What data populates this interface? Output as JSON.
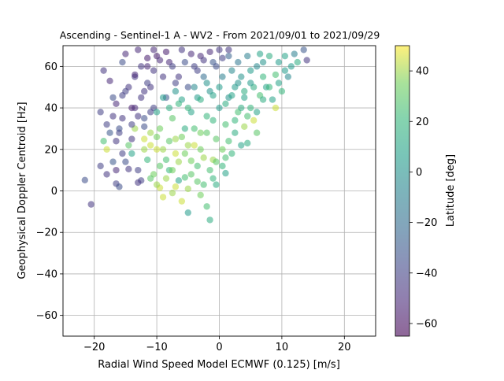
{
  "chart_data": {
    "type": "scatter",
    "title": "Ascending - Sentinel-1 A - WV2 - From 2021/09/01 to 2021/09/29",
    "xlabel": "Radial Wind Speed Model ECMWF (0.125) [m/s]",
    "ylabel": "Geophysical Doppler Centroid [Hz]",
    "xlim": [
      -25,
      25
    ],
    "ylim": [
      -70,
      70
    ],
    "grid": true,
    "xticks": [
      -20,
      -10,
      0,
      10,
      20
    ],
    "yticks": [
      -60,
      -40,
      -20,
      0,
      20,
      40,
      60
    ],
    "colorbar": {
      "label": "Latitude [deg]",
      "range": [
        -65,
        50
      ],
      "ticks": [
        -60,
        -40,
        -20,
        0,
        20,
        40
      ],
      "colormap": "viridis"
    },
    "point_alpha": 0.55,
    "points": [
      [
        -21.5,
        5.2,
        -35
      ],
      [
        -20.5,
        -6.5,
        -45
      ],
      [
        -19.0,
        38.0,
        -40
      ],
      [
        -18.5,
        58.0,
        -45
      ],
      [
        -18.0,
        20.0,
        45
      ],
      [
        -18.5,
        24.0,
        25
      ],
      [
        -19.0,
        12.0,
        -40
      ],
      [
        -18.0,
        8.0,
        -45
      ],
      [
        -17.5,
        53.0,
        -50
      ],
      [
        -17.0,
        45.0,
        -35
      ],
      [
        -17.0,
        14.0,
        -30
      ],
      [
        -16.5,
        10.0,
        -50
      ],
      [
        -16.5,
        3.5,
        -40
      ],
      [
        -16.0,
        2.0,
        -35
      ],
      [
        -16.0,
        28.0,
        -40
      ],
      [
        -15.5,
        35.0,
        -45
      ],
      [
        -15.5,
        62.0,
        -35
      ],
      [
        -15.0,
        66.0,
        -50
      ],
      [
        -15.0,
        48.0,
        -40
      ],
      [
        -14.5,
        22.0,
        30
      ],
      [
        -14.0,
        18.0,
        10
      ],
      [
        -14.0,
        40.0,
        -55
      ],
      [
        -13.5,
        55.0,
        -45
      ],
      [
        -13.5,
        30.0,
        40
      ],
      [
        -13.0,
        10.0,
        -40
      ],
      [
        -13.0,
        68.0,
        -50
      ],
      [
        -12.5,
        45.0,
        -45
      ],
      [
        -12.5,
        5.0,
        -40
      ],
      [
        -12.0,
        25.0,
        45
      ],
      [
        -12.0,
        35.0,
        -35
      ],
      [
        -11.5,
        15.0,
        20
      ],
      [
        -11.5,
        60.0,
        -50
      ],
      [
        -11.0,
        50.0,
        -45
      ],
      [
        -11.0,
        28.0,
        40
      ],
      [
        -10.5,
        8.0,
        35
      ],
      [
        -10.5,
        40.0,
        -40
      ],
      [
        -10.0,
        65.0,
        -55
      ],
      [
        -10.0,
        20.0,
        45
      ],
      [
        -9.5,
        1.5,
        45
      ],
      [
        -9.5,
        30.0,
        35
      ],
      [
        -9.0,
        55.0,
        -45
      ],
      [
        -9.0,
        -3.0,
        45
      ],
      [
        -8.5,
        15.0,
        25
      ],
      [
        -8.5,
        45.0,
        -30
      ],
      [
        -8.0,
        62.0,
        -50
      ],
      [
        -8.0,
        10.0,
        20
      ],
      [
        -7.5,
        35.0,
        30
      ],
      [
        -7.5,
        -1.0,
        40
      ],
      [
        -7.0,
        25.0,
        40
      ],
      [
        -7.0,
        52.0,
        -40
      ],
      [
        -6.5,
        5.0,
        10
      ],
      [
        -6.5,
        42.0,
        20
      ],
      [
        -6.0,
        -5.0,
        45
      ],
      [
        -6.0,
        68.0,
        -45
      ],
      [
        -5.5,
        18.0,
        35
      ],
      [
        -5.5,
        30.0,
        15
      ],
      [
        -5.0,
        -10.5,
        5
      ],
      [
        -5.0,
        50.0,
        -35
      ],
      [
        -4.5,
        8.0,
        30
      ],
      [
        -4.5,
        38.0,
        10
      ],
      [
        -4.0,
        60.0,
        -40
      ],
      [
        -4.0,
        22.0,
        45
      ],
      [
        -3.5,
        12.0,
        25
      ],
      [
        -3.5,
        45.0,
        5
      ],
      [
        -3.0,
        65.0,
        -50
      ],
      [
        -3.0,
        28.0,
        35
      ],
      [
        -2.5,
        3.0,
        25
      ],
      [
        -2.5,
        55.0,
        -20
      ],
      [
        -2.0,
        -7.5,
        25
      ],
      [
        -2.0,
        36.0,
        20
      ],
      [
        -1.5,
        -14.0,
        15
      ],
      [
        -1.5,
        48.0,
        0
      ],
      [
        -1.0,
        15.0,
        40
      ],
      [
        -1.0,
        62.0,
        -30
      ],
      [
        -0.5,
        25.0,
        30
      ],
      [
        -0.5,
        3.0,
        15
      ],
      [
        0.0,
        40.0,
        5
      ],
      [
        0.0,
        68.0,
        -45
      ],
      [
        0.5,
        20.0,
        35
      ],
      [
        0.5,
        55.0,
        -10
      ],
      [
        1.0,
        8.5,
        10
      ],
      [
        1.0,
        32.0,
        25
      ],
      [
        1.5,
        45.0,
        0
      ],
      [
        1.5,
        65.0,
        -25
      ],
      [
        2.0,
        18.0,
        20
      ],
      [
        2.0,
        58.0,
        -5
      ],
      [
        2.5,
        28.0,
        15
      ],
      [
        2.5,
        50.0,
        5
      ],
      [
        3.0,
        62.0,
        -15
      ],
      [
        3.0,
        38.0,
        25
      ],
      [
        3.5,
        22.0,
        10
      ],
      [
        3.5,
        55.0,
        0
      ],
      [
        4.0,
        31.0,
        40
      ],
      [
        4.0,
        45.0,
        10
      ],
      [
        4.5,
        23.0,
        15
      ],
      [
        4.5,
        65.0,
        -10
      ],
      [
        5.0,
        40.0,
        20
      ],
      [
        5.0,
        58.0,
        5
      ],
      [
        5.5,
        34.0,
        45
      ],
      [
        5.5,
        50.0,
        15
      ],
      [
        6.0,
        60.0,
        -5
      ],
      [
        6.0,
        38.0,
        10
      ],
      [
        6.5,
        66.0,
        10
      ],
      [
        6.5,
        46.0,
        25
      ],
      [
        7.0,
        55.0,
        20
      ],
      [
        7.0,
        62.0,
        0
      ],
      [
        7.5,
        50.0,
        10
      ],
      [
        8.0,
        65.0,
        15
      ],
      [
        8.5,
        44.0,
        10
      ],
      [
        9.0,
        40.0,
        45
      ],
      [
        9.0,
        56.0,
        25
      ],
      [
        9.5,
        62.0,
        5
      ],
      [
        10.0,
        48.0,
        20
      ],
      [
        10.5,
        65.0,
        10
      ],
      [
        11.0,
        55.0,
        -5
      ],
      [
        11.5,
        60.0,
        5
      ],
      [
        12.0,
        66.0,
        -10
      ],
      [
        12.5,
        62.0,
        15
      ],
      [
        13.5,
        68.0,
        -30
      ],
      [
        14.0,
        63.0,
        -45
      ],
      [
        -14.5,
        10.5,
        -45
      ],
      [
        -15.5,
        18.0,
        -40
      ],
      [
        -14.0,
        25.0,
        -45
      ],
      [
        -16.0,
        30.0,
        -35
      ],
      [
        -13.5,
        40.0,
        -50
      ],
      [
        -12.0,
        48.0,
        -45
      ],
      [
        -11.5,
        52.0,
        -40
      ],
      [
        -10.5,
        58.0,
        -45
      ],
      [
        -9.5,
        63.0,
        -50
      ],
      [
        -8.5,
        67.0,
        -55
      ],
      [
        -7.5,
        60.0,
        -40
      ],
      [
        -6.5,
        55.0,
        -45
      ],
      [
        -5.5,
        62.0,
        -35
      ],
      [
        -4.5,
        66.0,
        -50
      ],
      [
        -3.5,
        58.0,
        -40
      ],
      [
        -2.5,
        63.0,
        -45
      ],
      [
        -1.5,
        67.0,
        -50
      ],
      [
        -0.5,
        60.0,
        -35
      ],
      [
        0.5,
        64.0,
        -40
      ],
      [
        1.5,
        68.0,
        -45
      ],
      [
        -12.0,
        20.0,
        40
      ],
      [
        -11.0,
        22.0,
        45
      ],
      [
        -10.0,
        26.0,
        35
      ],
      [
        -9.0,
        20.0,
        40
      ],
      [
        -8.0,
        24.0,
        30
      ],
      [
        -7.0,
        18.0,
        45
      ],
      [
        -6.0,
        26.0,
        35
      ],
      [
        -5.0,
        22.0,
        40
      ],
      [
        -4.0,
        30.0,
        25
      ],
      [
        -3.0,
        20.0,
        35
      ],
      [
        -2.0,
        28.0,
        30
      ],
      [
        -1.0,
        34.0,
        20
      ],
      [
        -10.0,
        38.0,
        10
      ],
      [
        -9.0,
        45.0,
        5
      ],
      [
        -8.0,
        40.0,
        15
      ],
      [
        -7.0,
        48.0,
        0
      ],
      [
        -6.0,
        44.0,
        10
      ],
      [
        -5.0,
        40.0,
        20
      ],
      [
        -4.0,
        50.0,
        -5
      ],
      [
        -3.0,
        44.0,
        15
      ],
      [
        -2.0,
        52.0,
        0
      ],
      [
        -1.0,
        46.0,
        10
      ],
      [
        0.0,
        50.0,
        5
      ],
      [
        1.0,
        42.0,
        15
      ],
      [
        2.0,
        46.0,
        10
      ],
      [
        3.0,
        52.0,
        0
      ],
      [
        4.0,
        48.0,
        15
      ],
      [
        5.0,
        52.0,
        5
      ],
      [
        -17.0,
        36.0,
        -45
      ],
      [
        -16.5,
        42.0,
        -50
      ],
      [
        -15.5,
        46.0,
        -40
      ],
      [
        -14.5,
        50.0,
        -45
      ],
      [
        -13.5,
        56.0,
        -50
      ],
      [
        -12.5,
        60.0,
        -45
      ],
      [
        -11.5,
        64.0,
        -55
      ],
      [
        -10.5,
        68.0,
        -50
      ],
      [
        -14.0,
        32.0,
        -40
      ],
      [
        -13.0,
        36.0,
        -45
      ],
      [
        -12.0,
        31.0,
        -35
      ],
      [
        -11.0,
        38.0,
        -40
      ],
      [
        -9.5,
        12.0,
        30
      ],
      [
        -8.5,
        6.0,
        40
      ],
      [
        -7.5,
        10.0,
        35
      ],
      [
        -6.5,
        14.0,
        40
      ],
      [
        -5.5,
        6.5,
        25
      ],
      [
        -4.5,
        14.5,
        35
      ],
      [
        -3.5,
        4.5,
        30
      ],
      [
        -2.5,
        16.0,
        40
      ],
      [
        -1.5,
        10.0,
        25
      ],
      [
        -0.5,
        14.0,
        30
      ],
      [
        0.5,
        12.0,
        20
      ],
      [
        1.5,
        24.0,
        25
      ],
      [
        2.5,
        34.0,
        20
      ],
      [
        3.5,
        40.0,
        15
      ],
      [
        4.5,
        36.0,
        25
      ],
      [
        6.0,
        28.0,
        30
      ],
      [
        7.0,
        44.0,
        15
      ],
      [
        8.0,
        50.0,
        20
      ],
      [
        9.5,
        52.0,
        10
      ],
      [
        10.5,
        58.0,
        5
      ],
      [
        -17.5,
        28.0,
        -30
      ],
      [
        -18.0,
        32.0,
        -40
      ],
      [
        -16.5,
        24.0,
        -45
      ],
      [
        -15.0,
        14.0,
        -35
      ],
      [
        -13.0,
        4.0,
        -45
      ],
      [
        -11.0,
        6.0,
        30
      ],
      [
        -10.0,
        3.0,
        40
      ],
      [
        -7.0,
        2.0,
        45
      ],
      [
        -5.0,
        1.0,
        40
      ],
      [
        -3.0,
        -2.0,
        35
      ],
      [
        -1.0,
        6.0,
        20
      ],
      [
        1.0,
        16.0,
        25
      ]
    ]
  }
}
